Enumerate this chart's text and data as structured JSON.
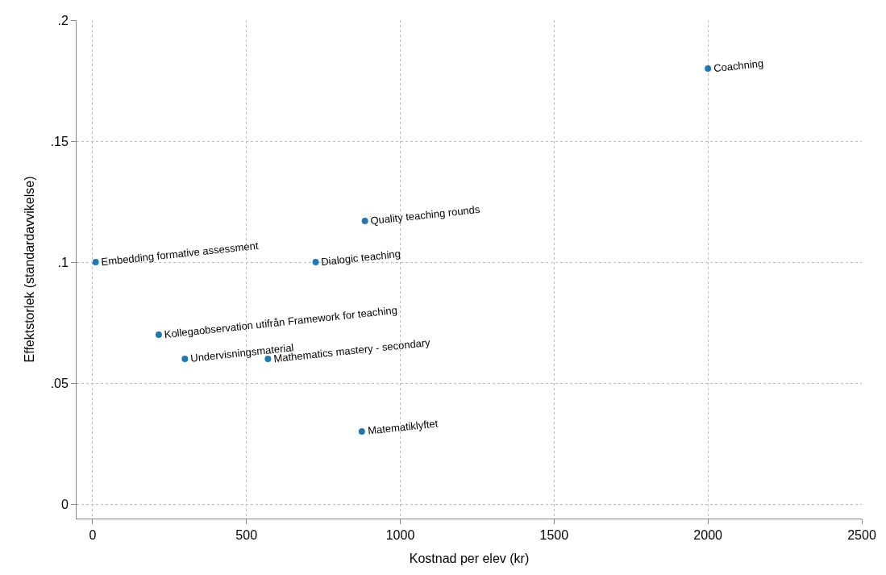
{
  "chart_data": {
    "type": "scatter",
    "xlabel": "Kostnad per elev (kr)",
    "ylabel": "Effektstorlek (standardavvikelse)",
    "x": [
      2000,
      885,
      10,
      725,
      215,
      300,
      570,
      875
    ],
    "series": [
      {
        "color": "#1f77b4",
        "values": [
          0.18,
          0.117,
          0.1,
          0.1,
          0.07,
          0.06,
          0.06,
          0.03
        ]
      }
    ],
    "annotations": [
      {
        "text": "Coachning",
        "x": 2000,
        "y": 0.18
      },
      {
        "text": "Quality teaching rounds",
        "x": 885,
        "y": 0.117
      },
      {
        "text": "Embedding formative assessment",
        "x": 10,
        "y": 0.1
      },
      {
        "text": "Dialogic teaching",
        "x": 725,
        "y": 0.1
      },
      {
        "text": "Kollegaobservation utifrån Framework for teaching",
        "x": 215,
        "y": 0.07
      },
      {
        "text": "Undervisningsmaterial",
        "x": 300,
        "y": 0.06
      },
      {
        "text": "Mathematics mastery - secondary",
        "x": 570,
        "y": 0.06
      },
      {
        "text": "Matematiklyftet",
        "x": 875,
        "y": 0.03
      }
    ],
    "xlim": [
      -52,
      2500
    ],
    "ylim": [
      -0.006,
      0.2
    ],
    "xticks": [
      0,
      500,
      1000,
      1500,
      2000,
      2500
    ],
    "yticks": [
      {
        "value": 0,
        "label": "0"
      },
      {
        "value": 0.05,
        "label": ".05"
      },
      {
        "value": 0.1,
        "label": ".1"
      },
      {
        "value": 0.15,
        "label": ".15"
      },
      {
        "value": 0.2,
        "label": ".2"
      }
    ],
    "grid": true,
    "marker": "circle"
  }
}
